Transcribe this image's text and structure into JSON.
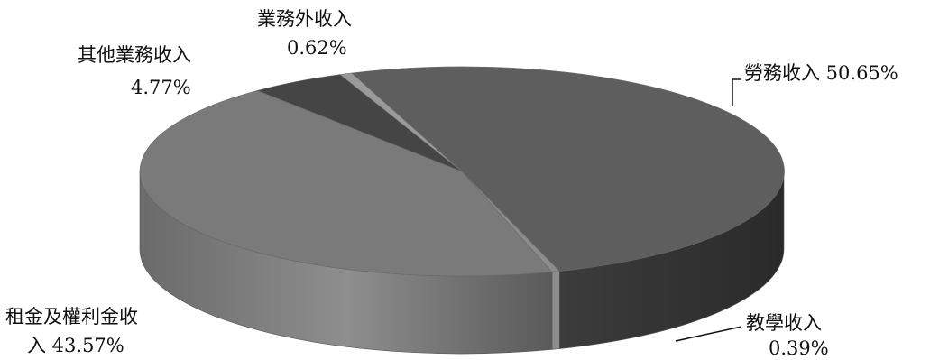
{
  "chart_data": {
    "type": "pie",
    "title": "",
    "slices": [
      {
        "label": "勞務收入",
        "percent_text": "50.65%",
        "value": 50.65,
        "color": "#5e5e5e"
      },
      {
        "label": "教學收入",
        "percent_text": "0.39%",
        "value": 0.39,
        "color": "#8c8c8c"
      },
      {
        "label": "租金及權利金收入",
        "percent_text": "43.57%",
        "value": 43.57,
        "color": "#7a7a7a"
      },
      {
        "label": "其他業務收入",
        "percent_text": "4.77%",
        "value": 4.77,
        "color": "#454545"
      },
      {
        "label": "業務外收入",
        "percent_text": "0.62%",
        "value": 0.62,
        "color": "#9a9a9a"
      }
    ],
    "labels": {
      "labor": {
        "line1": "勞務收入 50.65%"
      },
      "teaching": {
        "line1": "教學收入",
        "line2": "0.39%"
      },
      "rent": {
        "line1": "租金及權利金收",
        "line2": "入 43.57%"
      },
      "other": {
        "line1": "其他業務收入",
        "line2": "4.77%"
      },
      "nonop": {
        "line1": "業務外收入",
        "line2": "0.62%"
      }
    }
  }
}
